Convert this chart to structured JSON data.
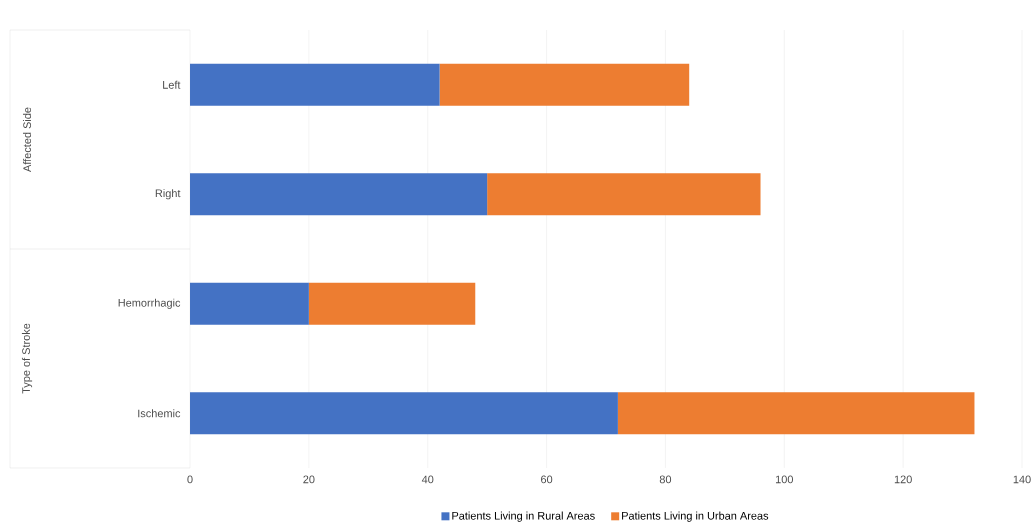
{
  "chart_data": {
    "type": "bar",
    "orientation": "horizontal",
    "stacked": true,
    "categories": [
      "Left",
      "Right",
      "Hemorrhagic",
      "Ischemic"
    ],
    "series": [
      {
        "name": "Patients Living in Rural Areas",
        "color": "#4472c4",
        "values": [
          42,
          50,
          20,
          72
        ]
      },
      {
        "name": "Patients Living in Urban Areas",
        "color": "#ed7d31",
        "values": [
          42,
          46,
          28,
          60
        ]
      }
    ],
    "xlim": [
      0,
      140
    ],
    "xticks": [
      0,
      20,
      40,
      60,
      80,
      100,
      120,
      140
    ],
    "grid": "x",
    "legend": "bottom",
    "annotations": [
      "Affected Side",
      "Type of Stroke"
    ]
  }
}
